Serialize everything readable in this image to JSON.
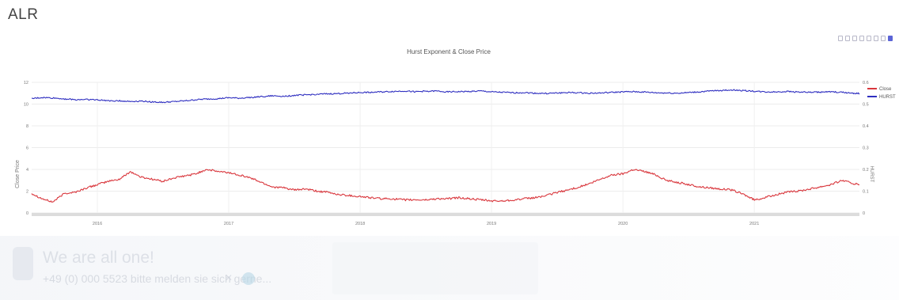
{
  "page": {
    "title": "ALR"
  },
  "modebar": {
    "icons": [
      "camera-icon",
      "zoom-icon",
      "pan-icon",
      "zoom-in-icon",
      "zoom-out-icon",
      "autoscale-icon",
      "reset-axes-icon",
      "plotly-logo-icon"
    ]
  },
  "chart_data": {
    "type": "line",
    "title": "Hurst Exponent & Close Price",
    "ylabel": "Close Price",
    "y2label": "HURST",
    "ylim": [
      0,
      12
    ],
    "y2lim": [
      0,
      0.6
    ],
    "yticks": [
      "0",
      "2",
      "4",
      "6",
      "8",
      "10",
      "12"
    ],
    "y2ticks": [
      "0",
      "0.1",
      "0.2",
      "0.3",
      "0.4",
      "0.5",
      "0.6"
    ],
    "xlim": [
      2015.5,
      2021.8
    ],
    "xticks": [
      "2016",
      "2017",
      "2018",
      "2019",
      "2020",
      "2021"
    ],
    "grid": true,
    "legend_position": "top-right",
    "colors": {
      "close": "#d9373d",
      "hurst": "#2f2fc0"
    },
    "series": [
      {
        "name": "Close",
        "axis": "left",
        "x": [
          2015.5,
          2015.58,
          2015.66,
          2015.75,
          2015.83,
          2015.92,
          2016.0,
          2016.08,
          2016.17,
          2016.25,
          2016.33,
          2016.42,
          2016.5,
          2016.58,
          2016.67,
          2016.75,
          2016.83,
          2016.92,
          2017.0,
          2017.08,
          2017.17,
          2017.25,
          2017.33,
          2017.42,
          2017.5,
          2017.58,
          2017.67,
          2017.75,
          2017.83,
          2017.92,
          2018.0,
          2018.08,
          2018.17,
          2018.25,
          2018.33,
          2018.42,
          2018.5,
          2018.58,
          2018.67,
          2018.75,
          2018.83,
          2018.92,
          2019.0,
          2019.08,
          2019.17,
          2019.25,
          2019.33,
          2019.42,
          2019.5,
          2019.58,
          2019.67,
          2019.75,
          2019.83,
          2019.92,
          2020.0,
          2020.08,
          2020.17,
          2020.25,
          2020.33,
          2020.42,
          2020.5,
          2020.58,
          2020.67,
          2020.75,
          2020.83,
          2020.92,
          2021.0,
          2021.08,
          2021.17,
          2021.25,
          2021.33,
          2021.42,
          2021.5,
          2021.58,
          2021.67,
          2021.75,
          2021.8
        ],
        "values": [
          1.8,
          1.3,
          1.0,
          1.8,
          1.9,
          2.3,
          2.6,
          2.9,
          3.1,
          3.8,
          3.3,
          3.1,
          2.9,
          3.2,
          3.4,
          3.6,
          4.0,
          3.8,
          3.7,
          3.5,
          3.2,
          2.8,
          2.4,
          2.3,
          2.1,
          2.2,
          2.0,
          1.9,
          1.7,
          1.6,
          1.5,
          1.4,
          1.3,
          1.3,
          1.2,
          1.2,
          1.2,
          1.3,
          1.3,
          1.4,
          1.3,
          1.2,
          1.1,
          1.1,
          1.2,
          1.3,
          1.4,
          1.6,
          1.9,
          2.1,
          2.4,
          2.7,
          3.1,
          3.5,
          3.6,
          4.0,
          3.8,
          3.5,
          3.0,
          2.8,
          2.6,
          2.4,
          2.3,
          2.2,
          2.1,
          1.7,
          1.2,
          1.4,
          1.7,
          1.9,
          2.0,
          2.2,
          2.4,
          2.6,
          3.0,
          2.7,
          2.6
        ]
      },
      {
        "name": "HURST",
        "axis": "right",
        "x": [
          2015.5,
          2015.58,
          2015.66,
          2015.75,
          2015.83,
          2015.92,
          2016.0,
          2016.08,
          2016.17,
          2016.25,
          2016.33,
          2016.42,
          2016.5,
          2016.58,
          2016.67,
          2016.75,
          2016.83,
          2016.92,
          2017.0,
          2017.08,
          2017.17,
          2017.25,
          2017.33,
          2017.42,
          2017.5,
          2017.58,
          2017.67,
          2017.75,
          2017.83,
          2017.92,
          2018.0,
          2018.08,
          2018.17,
          2018.25,
          2018.33,
          2018.42,
          2018.5,
          2018.58,
          2018.67,
          2018.75,
          2018.83,
          2018.92,
          2019.0,
          2019.08,
          2019.17,
          2019.25,
          2019.33,
          2019.42,
          2019.5,
          2019.58,
          2019.67,
          2019.75,
          2019.83,
          2019.92,
          2020.0,
          2020.08,
          2020.17,
          2020.25,
          2020.33,
          2020.42,
          2020.5,
          2020.58,
          2020.67,
          2020.75,
          2020.83,
          2020.92,
          2021.0,
          2021.08,
          2021.17,
          2021.25,
          2021.33,
          2021.42,
          2021.5,
          2021.58,
          2021.67,
          2021.75,
          2021.8
        ],
        "values": [
          0.525,
          0.53,
          0.528,
          0.524,
          0.52,
          0.522,
          0.519,
          0.516,
          0.515,
          0.512,
          0.514,
          0.51,
          0.508,
          0.511,
          0.515,
          0.52,
          0.523,
          0.525,
          0.529,
          0.527,
          0.531,
          0.534,
          0.538,
          0.536,
          0.54,
          0.542,
          0.545,
          0.547,
          0.548,
          0.551,
          0.553,
          0.554,
          0.556,
          0.558,
          0.56,
          0.557,
          0.559,
          0.56,
          0.556,
          0.557,
          0.558,
          0.56,
          0.556,
          0.554,
          0.552,
          0.553,
          0.55,
          0.549,
          0.551,
          0.553,
          0.552,
          0.55,
          0.551,
          0.554,
          0.556,
          0.557,
          0.555,
          0.552,
          0.551,
          0.55,
          0.553,
          0.556,
          0.56,
          0.563,
          0.565,
          0.562,
          0.559,
          0.556,
          0.556,
          0.558,
          0.556,
          0.554,
          0.555,
          0.556,
          0.554,
          0.55,
          0.549
        ]
      }
    ]
  },
  "toast": {
    "title": "We are all one!",
    "text": "+49 (0) 000 5523 bitte melden sie sich gerne..."
  }
}
